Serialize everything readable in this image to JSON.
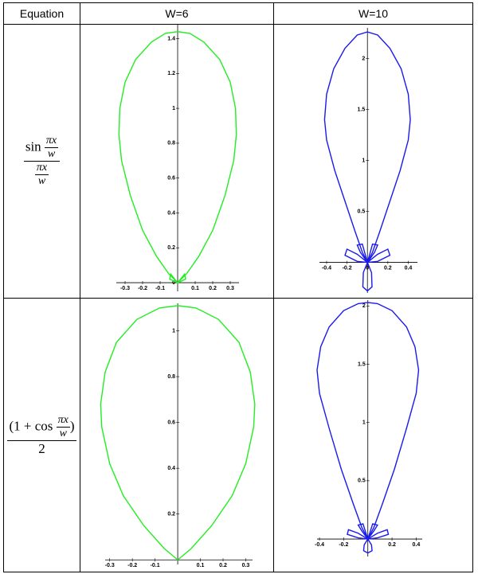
{
  "table": {
    "header": [
      "Equation",
      "W=6",
      "W=10"
    ],
    "rows": [
      {
        "equation": {
          "numerator": {
            "prefix": "sin",
            "frac": [
              "πx",
              "w"
            ]
          },
          "denominator": {
            "frac": [
              "πx",
              "w"
            ]
          }
        },
        "plots": [
          {
            "type": "line",
            "xlim": [
              -0.35,
              0.35
            ],
            "ylim": [
              -0.05,
              1.48
            ],
            "xticks": [
              -0.3,
              -0.2,
              -0.1,
              0.1,
              0.2,
              0.3
            ],
            "yticks": [
              0,
              0.2,
              0.4,
              0.6,
              0.8,
              1,
              1.2,
              1.4
            ],
            "series": [
              {
                "color": "#22ee22",
                "x": [
                  0,
                  0.05,
                  0.12,
                  0.2,
                  0.27,
                  0.32,
                  0.335,
                  0.33,
                  0.3,
                  0.24,
                  0.15,
                  0.07,
                  0,
                  -0.07,
                  -0.15,
                  -0.24,
                  -0.3,
                  -0.33,
                  -0.335,
                  -0.32,
                  -0.27,
                  -0.2,
                  -0.12,
                  -0.05,
                  0
                ],
                "y": [
                  0,
                  0.05,
                  0.15,
                  0.3,
                  0.5,
                  0.7,
                  0.85,
                  1.0,
                  1.15,
                  1.28,
                  1.38,
                  1.43,
                  1.44,
                  1.43,
                  1.38,
                  1.28,
                  1.15,
                  1.0,
                  0.85,
                  0.7,
                  0.5,
                  0.3,
                  0.15,
                  0.05,
                  0
                ]
              },
              {
                "color": "#22ee22",
                "x": [
                  0,
                  0.04,
                  0.045,
                  0,
                  -0.045,
                  -0.04,
                  0
                ],
                "y": [
                  0,
                  0.05,
                  0.02,
                  0,
                  0.02,
                  0.05,
                  0
                ]
              }
            ]
          },
          {
            "type": "line",
            "xlim": [
              -0.47,
              0.49
            ],
            "ylim": [
              -0.3,
              2.3
            ],
            "xticks": [
              -0.4,
              -0.2,
              0,
              0.2,
              0.4
            ],
            "yticks": [
              0.5,
              1,
              1.5,
              2
            ],
            "series": [
              {
                "color": "#1a1aee",
                "x": [
                  0,
                  0.05,
                  0.12,
                  0.22,
                  0.32,
                  0.4,
                  0.42,
                  0.4,
                  0.33,
                  0.22,
                  0.1,
                  0,
                  -0.1,
                  -0.22,
                  -0.33,
                  -0.4,
                  -0.42,
                  -0.4,
                  -0.32,
                  -0.22,
                  -0.12,
                  -0.05,
                  0
                ],
                "y": [
                  0,
                  0.1,
                  0.3,
                  0.6,
                  0.9,
                  1.2,
                  1.4,
                  1.65,
                  1.9,
                  2.1,
                  2.23,
                  2.26,
                  2.23,
                  2.1,
                  1.9,
                  1.65,
                  1.4,
                  1.2,
                  0.9,
                  0.6,
                  0.3,
                  0.1,
                  0
                ]
              },
              {
                "color": "#1a1aee",
                "x": [
                  0,
                  0.1,
                  0.2,
                  0.22,
                  0.1,
                  0,
                  null,
                  0,
                  -0.1,
                  -0.2,
                  -0.22,
                  -0.1,
                  0,
                  null,
                  0,
                  0.04,
                  0.045,
                  0,
                  -0.045,
                  -0.04,
                  0,
                  null,
                  0,
                  0.07,
                  0.1,
                  0.05,
                  0,
                  null,
                  0,
                  -0.07,
                  -0.1,
                  -0.05,
                  0
                ],
                "y": [
                  0,
                  0.08,
                  0.13,
                  0.07,
                  0.01,
                  0,
                  null,
                  0,
                  0.08,
                  0.13,
                  0.07,
                  0.01,
                  0,
                  null,
                  0,
                  -0.1,
                  -0.24,
                  -0.28,
                  -0.24,
                  -0.1,
                  0,
                  null,
                  0,
                  0.1,
                  0.17,
                  0.18,
                  0,
                  null,
                  0,
                  0.1,
                  0.17,
                  0.18,
                  0
                ]
              }
            ]
          }
        ]
      },
      {
        "equation": {
          "numerator": {
            "prefix": "(1 + cos",
            "frac": [
              "πx",
              "w"
            ],
            "suffix": ")"
          },
          "denominator": {
            "text": "2"
          }
        },
        "plots": [
          {
            "type": "line",
            "xlim": [
              -0.32,
              0.33
            ],
            "ylim": [
              -0.02,
              1.12
            ],
            "xticks": [
              -0.3,
              -0.2,
              -0.1,
              0.1,
              0.2,
              0.3
            ],
            "yticks": [
              0.2,
              0.4,
              0.6,
              0.8,
              1
            ],
            "series": [
              {
                "color": "#22ee22",
                "x": [
                  0,
                  0.06,
                  0.15,
                  0.24,
                  0.3,
                  0.335,
                  0.34,
                  0.32,
                  0.27,
                  0.18,
                  0.08,
                  0,
                  -0.08,
                  -0.18,
                  -0.27,
                  -0.32,
                  -0.34,
                  -0.335,
                  -0.3,
                  -0.24,
                  -0.15,
                  -0.06,
                  0
                ],
                "y": [
                  0,
                  0.05,
                  0.15,
                  0.28,
                  0.42,
                  0.58,
                  0.68,
                  0.82,
                  0.95,
                  1.05,
                  1.1,
                  1.11,
                  1.1,
                  1.05,
                  0.95,
                  0.82,
                  0.68,
                  0.58,
                  0.42,
                  0.28,
                  0.15,
                  0.05,
                  0
                ]
              }
            ]
          },
          {
            "type": "line",
            "xlim": [
              -0.42,
              0.45
            ],
            "ylim": [
              -0.15,
              2.05
            ],
            "xticks": [
              -0.4,
              -0.2,
              0.2,
              0.4
            ],
            "yticks": [
              0.5,
              1,
              1.5,
              2
            ],
            "series": [
              {
                "color": "#1a1aee",
                "x": [
                  0,
                  0.05,
                  0.12,
                  0.22,
                  0.32,
                  0.4,
                  0.42,
                  0.39,
                  0.32,
                  0.2,
                  0.08,
                  0,
                  -0.08,
                  -0.2,
                  -0.32,
                  -0.39,
                  -0.42,
                  -0.4,
                  -0.32,
                  -0.22,
                  -0.12,
                  -0.05,
                  0
                ],
                "y": [
                  0,
                  0.1,
                  0.3,
                  0.6,
                  0.95,
                  1.25,
                  1.45,
                  1.65,
                  1.82,
                  1.96,
                  2.02,
                  2.03,
                  2.02,
                  1.96,
                  1.82,
                  1.65,
                  1.45,
                  1.25,
                  0.95,
                  0.6,
                  0.3,
                  0.1,
                  0
                ]
              },
              {
                "color": "#1a1aee",
                "x": [
                  0,
                  0.08,
                  0.16,
                  0.17,
                  0.08,
                  0,
                  null,
                  0,
                  -0.08,
                  -0.16,
                  -0.17,
                  -0.08,
                  0,
                  null,
                  0,
                  0.03,
                  0.035,
                  0,
                  -0.035,
                  -0.03,
                  0,
                  null,
                  0,
                  0.05,
                  0.08,
                  0.04,
                  0,
                  null,
                  0,
                  -0.05,
                  -0.08,
                  -0.04,
                  0
                ],
                "y": [
                  0,
                  0.05,
                  0.08,
                  0.04,
                  0.01,
                  0,
                  null,
                  0,
                  0.05,
                  0.08,
                  0.04,
                  0.01,
                  0,
                  null,
                  0,
                  -0.05,
                  -0.1,
                  -0.12,
                  -0.1,
                  -0.05,
                  0,
                  null,
                  0,
                  0.07,
                  0.12,
                  0.13,
                  0,
                  null,
                  0,
                  0.07,
                  0.12,
                  0.13,
                  0
                ]
              }
            ]
          }
        ]
      }
    ]
  }
}
